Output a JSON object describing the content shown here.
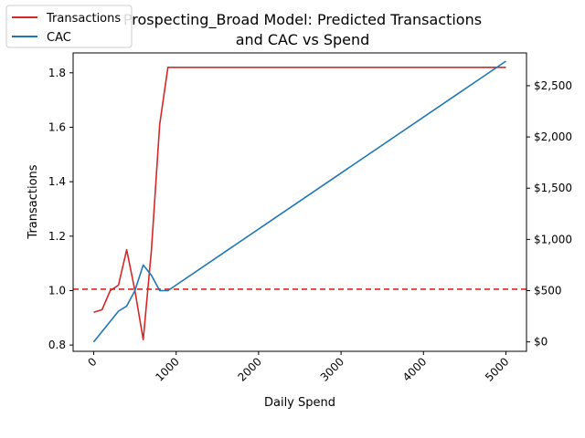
{
  "chart_data": {
    "type": "line",
    "title_line1": "Prospecting_Broad Model: Predicted Transactions",
    "title_line2": "and CAC vs Spend",
    "xlabel": "Daily Spend",
    "ylabel_left": "Transactions",
    "x_ticks": [
      "0",
      "1000",
      "2000",
      "3000",
      "4000",
      "5000"
    ],
    "y_left_ticks": [
      "0.8",
      "1.0",
      "1.2",
      "1.4",
      "1.6",
      "1.8"
    ],
    "y_right_ticks": [
      "$0",
      "$500",
      "$1,000",
      "$1,500",
      "$2,000",
      "$2,500"
    ],
    "xlim": [
      -250,
      5250
    ],
    "ylim_left": [
      0.777,
      1.873
    ],
    "ylim_right": [
      -92,
      2820
    ],
    "legend_placement": "top-left",
    "series": [
      {
        "name": "Transactions",
        "axis": "left",
        "color": "#d62728",
        "x": [
          0,
          100,
          200,
          300,
          400,
          500,
          600,
          700,
          800,
          900,
          1000,
          5000
        ],
        "y": [
          0.92,
          0.93,
          1.0,
          1.02,
          1.15,
          1.0,
          0.82,
          1.15,
          1.61,
          1.82,
          1.82,
          1.82
        ]
      },
      {
        "name": "CAC",
        "axis": "right",
        "color": "#1f77b4",
        "x": [
          0,
          100,
          200,
          300,
          400,
          500,
          600,
          700,
          800,
          900,
          5000
        ],
        "y": [
          0,
          100,
          200,
          300,
          350,
          500,
          750,
          650,
          500,
          500,
          2740
        ]
      }
    ],
    "reference_line": {
      "axis": "left",
      "y": 1.005,
      "color": "#d62728",
      "style": "dashed"
    }
  }
}
